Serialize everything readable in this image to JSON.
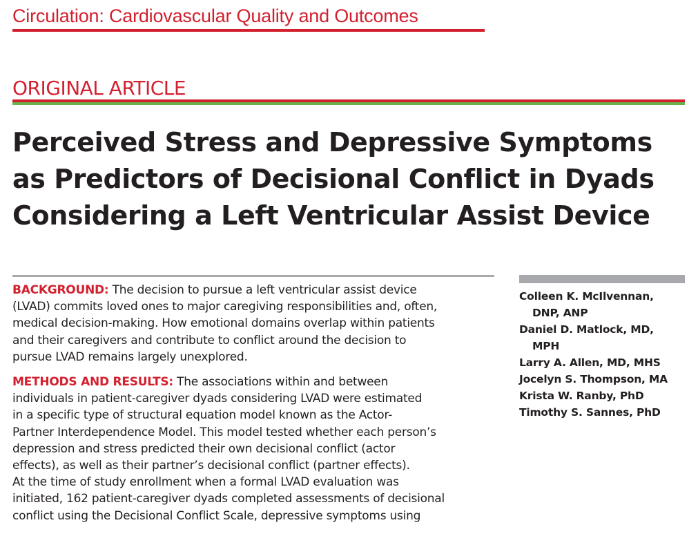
{
  "journal": {
    "name": "Circulation: Cardiovascular Quality and Outcomes"
  },
  "article": {
    "type": "ORIGINAL ARTICLE",
    "title_lines": [
      "Perceived Stress and Depressive Symptoms",
      "as Predictors of Decisional Conflict in Dyads",
      "Considering a Left Ventricular Assist Device"
    ]
  },
  "abstract": {
    "background": {
      "label": "BACKGROUND:",
      "lines": [
        " The decision to pursue a left ventricular assist device",
        "(LVAD) commits loved ones to major caregiving responsibilities and, often,",
        "medical decision-making. How emotional domains overlap within patients",
        "and their caregivers and contribute to conflict around the decision to",
        "pursue LVAD remains largely unexplored."
      ]
    },
    "methods": {
      "label": "METHODS AND RESULTS:",
      "lines": [
        " The associations within and between",
        "individuals in patient-caregiver dyads considering LVAD were estimated",
        "in a specific type of structural equation model known as the Actor-",
        "Partner Interdependence Model. This model tested whether each person’s",
        "depression and stress predicted their own decisional conflict (actor",
        "effects), as well as their partner’s decisional conflict (partner effects).",
        "At the time of study enrollment when a formal LVAD evaluation was",
        "initiated, 162 patient-caregiver dyads completed assessments of decisional",
        "conflict using the Decisional Conflict Scale, depressive symptoms using"
      ]
    }
  },
  "authors": [
    {
      "line1": "Colleen K. McIlvennan,",
      "line2": "DNP, ANP"
    },
    {
      "line1": "Daniel D. Matlock, MD,",
      "line2": "MPH"
    },
    {
      "line1": "Larry A. Allen, MD, MHS",
      "line2": ""
    },
    {
      "line1": "Jocelyn S. Thompson, MA",
      "line2": ""
    },
    {
      "line1": "Krista W. Ranby, PhD",
      "line2": ""
    },
    {
      "line1": "Timothy S. Sannes, PhD",
      "line2": ""
    }
  ],
  "colors": {
    "accent_red": "#d3202f",
    "accent_green": "#6ab04c",
    "rule_gray": "#a7a9ac",
    "text": "#231f20"
  }
}
